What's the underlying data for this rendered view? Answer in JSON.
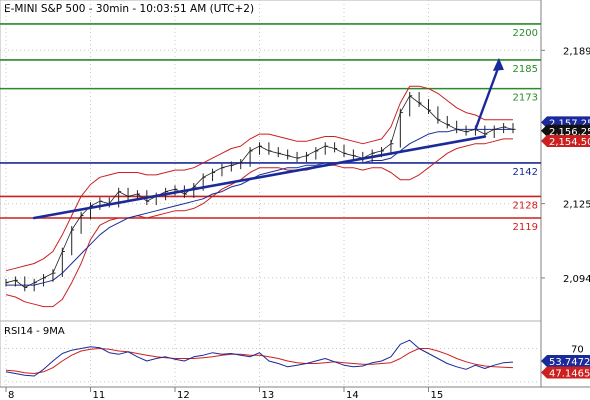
{
  "chart_data": {
    "type": "line",
    "title": "E-MINI S&P 500 - 30min - 10:03:51 AM (UTC+2)",
    "price_axis": {
      "ticks": [
        2189,
        2125,
        2094
      ],
      "tick_labels": [
        "2,189",
        "2,125",
        "2,094"
      ],
      "ylim": [
        2076,
        2210
      ]
    },
    "x_axis": {
      "day_labels": [
        "8",
        "11",
        "12",
        "13",
        "14",
        "15"
      ]
    },
    "levels": [
      {
        "value": 2200,
        "label": "2200",
        "color": "#2a8a2a"
      },
      {
        "value": 2185,
        "label": "2185",
        "color": "#2a8a2a"
      },
      {
        "value": 2173,
        "label": "2173",
        "color": "#2a8a2a"
      },
      {
        "value": 2142,
        "label": "2142",
        "color": "#1a2a9a"
      },
      {
        "value": 2128,
        "label": "2128",
        "color": "#cc2020"
      },
      {
        "value": 2119,
        "label": "2119",
        "color": "#cc2020"
      }
    ],
    "price_tags": [
      {
        "value": 2157.25,
        "label": "2,157.25",
        "bg": "#1a2a9a"
      },
      {
        "value": 2156.25,
        "label": "2,156.25",
        "bg": "#111111"
      },
      {
        "value": 2154.5,
        "label": "2,154.50",
        "bg": "#cc2020"
      }
    ],
    "price_series": {
      "name": "E-MINI S&P 500",
      "color": "#222222",
      "values": [
        2092,
        2093,
        2090,
        2092,
        2094,
        2096,
        2105,
        2114,
        2120,
        2124,
        2126,
        2125,
        2130,
        2128,
        2129,
        2126,
        2128,
        2130,
        2131,
        2129,
        2132,
        2136,
        2138,
        2140,
        2141,
        2142,
        2147,
        2149,
        2147,
        2146,
        2145,
        2144,
        2145,
        2147,
        2149,
        2148,
        2146,
        2145,
        2144,
        2146,
        2147,
        2150,
        2163,
        2170,
        2167,
        2164,
        2160,
        2158,
        2156,
        2155,
        2156,
        2154,
        2156,
        2157,
        2156
      ]
    },
    "bollinger": {
      "color": "#cc2020",
      "upper": [
        2097,
        2098,
        2099,
        2100,
        2102,
        2105,
        2112,
        2120,
        2128,
        2133,
        2136,
        2137,
        2138,
        2138,
        2138,
        2137,
        2137,
        2138,
        2139,
        2139,
        2140,
        2142,
        2144,
        2146,
        2148,
        2149,
        2152,
        2154,
        2154,
        2153,
        2152,
        2151,
        2151,
        2152,
        2153,
        2153,
        2152,
        2151,
        2150,
        2151,
        2152,
        2157,
        2167,
        2174,
        2174,
        2173,
        2171,
        2168,
        2165,
        2163,
        2162,
        2160,
        2160,
        2160,
        2160
      ],
      "lower": [
        2087,
        2086,
        2084,
        2083,
        2082,
        2082,
        2085,
        2092,
        2100,
        2110,
        2116,
        2118,
        2119,
        2119,
        2120,
        2119,
        2120,
        2121,
        2122,
        2122,
        2123,
        2125,
        2128,
        2131,
        2133,
        2135,
        2138,
        2140,
        2140,
        2140,
        2139,
        2139,
        2139,
        2140,
        2141,
        2141,
        2140,
        2140,
        2139,
        2140,
        2140,
        2138,
        2135,
        2135,
        2137,
        2140,
        2143,
        2146,
        2148,
        2149,
        2150,
        2150,
        2151,
        2152,
        2152
      ]
    },
    "moving_average": {
      "color": "#1a2a9a",
      "values": [
        2091,
        2091,
        2091,
        2091,
        2092,
        2093,
        2096,
        2100,
        2104,
        2108,
        2112,
        2115,
        2117,
        2119,
        2120,
        2121,
        2122,
        2123,
        2124,
        2125,
        2126,
        2127,
        2129,
        2130,
        2132,
        2133,
        2135,
        2137,
        2138,
        2139,
        2140,
        2140,
        2141,
        2141,
        2142,
        2142,
        2142,
        2142,
        2142,
        2143,
        2143,
        2144,
        2147,
        2150,
        2152,
        2154,
        2155,
        2155,
        2156,
        2156,
        2156,
        2156,
        2156,
        2156,
        2156
      ]
    },
    "trendline": {
      "color": "#1a2a9a",
      "from": [
        3,
        2119
      ],
      "to": [
        51,
        2153
      ]
    },
    "projection_arrow": {
      "color": "#1a2a9a",
      "from": [
        50,
        2156
      ],
      "to": [
        52.5,
        2185
      ]
    },
    "rsi": {
      "title": "RSI14 - 9MA",
      "ticks": [
        70,
        30
      ],
      "tick_labels": [
        "70",
        ""
      ],
      "ylim": [
        25,
        85
      ],
      "tags": [
        {
          "value": 53.7472,
          "label": "53.7472",
          "bg": "#1a2a9a"
        },
        {
          "value": 47.1465,
          "label": "47.1465",
          "bg": "#cc2020"
        }
      ],
      "rsi_series": {
        "color": "#1a2a9a",
        "values": [
          42,
          40,
          38,
          37,
          45,
          55,
          64,
          68,
          70,
          72,
          71,
          65,
          63,
          66,
          60,
          55,
          58,
          60,
          57,
          55,
          60,
          62,
          65,
          63,
          64,
          62,
          60,
          65,
          55,
          52,
          48,
          50,
          52,
          55,
          58,
          54,
          50,
          48,
          49,
          53,
          55,
          60,
          75,
          80,
          70,
          64,
          58,
          52,
          48,
          45,
          50,
          46,
          50,
          53,
          53.7
        ]
      },
      "ma_series": {
        "color": "#cc2020",
        "values": [
          44,
          43,
          41,
          40,
          42,
          47,
          55,
          62,
          67,
          69,
          70,
          69,
          67,
          66,
          64,
          62,
          60,
          59,
          58,
          58,
          58,
          59,
          60,
          62,
          63,
          63,
          62,
          62,
          60,
          58,
          55,
          53,
          52,
          52,
          53,
          54,
          53,
          52,
          51,
          51,
          52,
          53,
          58,
          65,
          70,
          70,
          67,
          63,
          58,
          54,
          51,
          49,
          48,
          47.5,
          47.1
        ]
      }
    }
  }
}
